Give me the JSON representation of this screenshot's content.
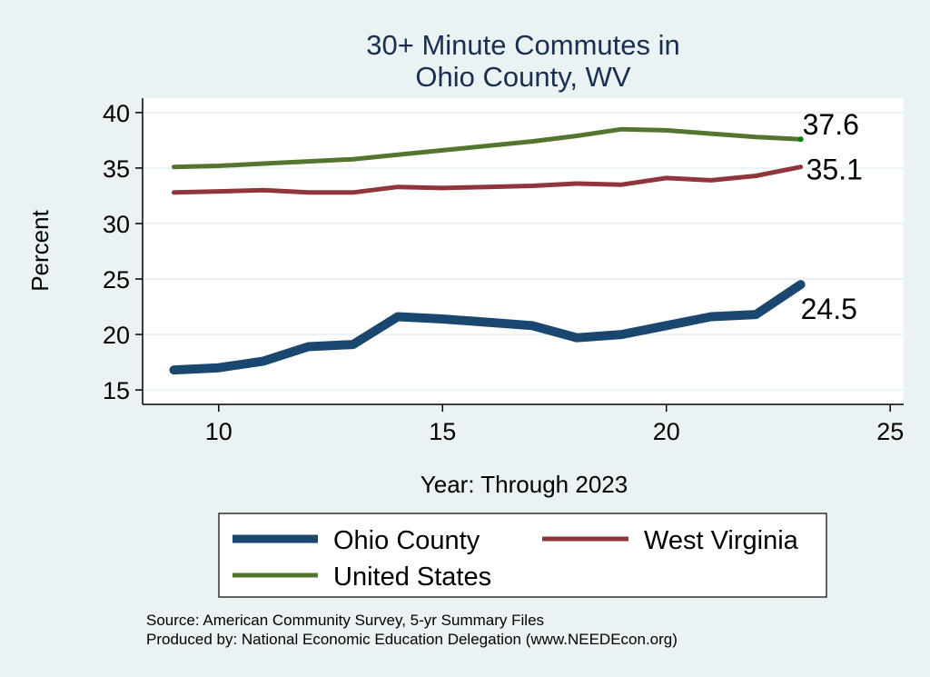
{
  "chart_data": {
    "type": "line",
    "title": [
      "30+ Minute Commutes in",
      "Ohio County, WV"
    ],
    "xlabel": "Year: Through 2023",
    "ylabel": "Percent",
    "xlim": [
      8.3,
      25.3
    ],
    "ylim": [
      13.7,
      41.3
    ],
    "xticks": [
      10,
      15,
      20,
      25
    ],
    "yticks": [
      15,
      20,
      25,
      30,
      35,
      40
    ],
    "grid": "horizontal",
    "x": [
      9,
      10,
      11,
      12,
      13,
      14,
      15,
      16,
      17,
      18,
      19,
      20,
      21,
      22,
      23
    ],
    "series": [
      {
        "name": "Ohio County",
        "color": "#1a476f",
        "values": [
          16.8,
          17.0,
          17.6,
          18.9,
          19.1,
          21.6,
          21.4,
          21.1,
          20.8,
          19.7,
          20.0,
          20.8,
          21.6,
          21.8,
          24.5
        ],
        "end_label": "24.5"
      },
      {
        "name": "West Virginia",
        "color": "#90353b",
        "values": [
          32.8,
          32.9,
          33.0,
          32.8,
          32.8,
          33.3,
          33.2,
          33.3,
          33.4,
          33.6,
          33.5,
          34.1,
          33.9,
          34.3,
          35.1
        ],
        "end_label": "35.1"
      },
      {
        "name": "United States",
        "color": "#55752f",
        "values": [
          35.1,
          35.2,
          35.4,
          35.6,
          35.8,
          36.2,
          36.6,
          37.0,
          37.4,
          37.9,
          38.5,
          38.4,
          38.1,
          37.8,
          37.6
        ],
        "end_label": "37.6"
      }
    ],
    "legend": {
      "placement": "bottom",
      "entries": [
        "Ohio County",
        "West Virginia",
        "United States"
      ]
    },
    "notes": [
      "Source: American Community Survey, 5-yr Summary Files",
      "Produced by: National Economic Education Delegation (www.NEEDEcon.org)"
    ]
  },
  "colors": {
    "background": "#eaf2f3",
    "plot_background": "#ffffff",
    "gridline": "#eaf2f3",
    "title": "#1a2e50",
    "endpoint_marker": "#008000"
  }
}
